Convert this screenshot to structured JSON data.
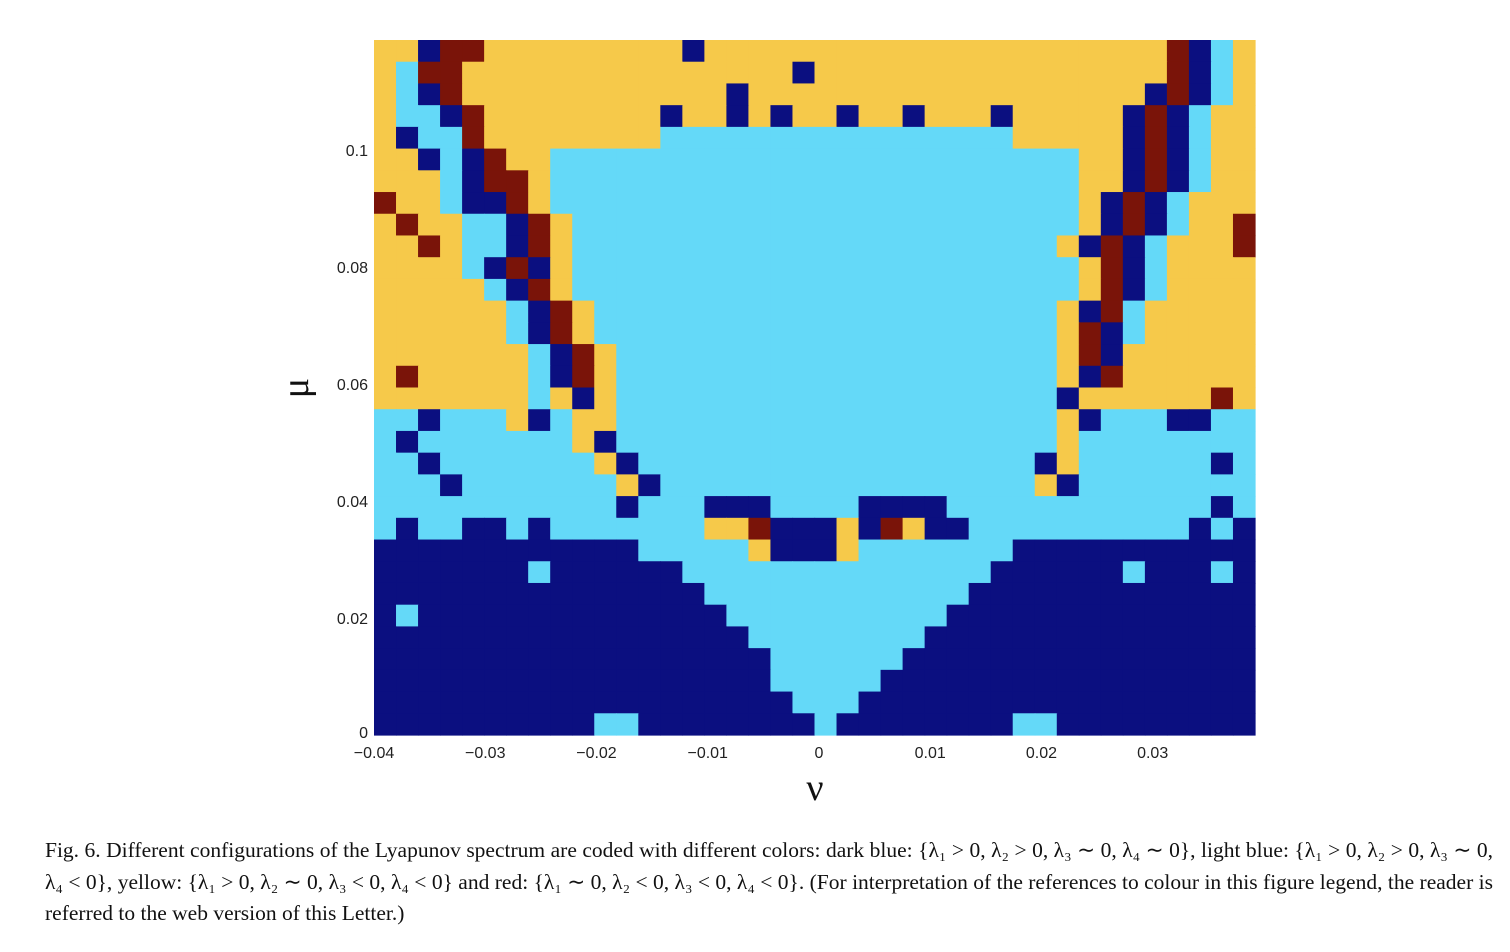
{
  "chart_data": {
    "type": "heatmap",
    "title": "",
    "xlabel": "ν",
    "ylabel": "μ",
    "xlim": [
      -0.04,
      0.0392
    ],
    "ylim": [
      0,
      0.1188
    ],
    "xticks": [
      {
        "value": -0.04,
        "label": "−0.04"
      },
      {
        "value": -0.03,
        "label": "−0.03"
      },
      {
        "value": -0.02,
        "label": "−0.02"
      },
      {
        "value": -0.01,
        "label": "−0.01"
      },
      {
        "value": 0,
        "label": "0"
      },
      {
        "value": 0.01,
        "label": "0.01"
      },
      {
        "value": 0.02,
        "label": "0.02"
      },
      {
        "value": 0.03,
        "label": "0.03"
      }
    ],
    "yticks": [
      {
        "value": 0,
        "label": "0"
      },
      {
        "value": 0.02,
        "label": "0.02"
      },
      {
        "value": 0.04,
        "label": "0.04"
      },
      {
        "value": 0.06,
        "label": "0.06"
      },
      {
        "value": 0.08,
        "label": "0.08"
      },
      {
        "value": 0.1,
        "label": "0.1"
      }
    ],
    "grid": false,
    "categories": {
      "D": {
        "meaning": "dark blue",
        "color": "#0b0f80"
      },
      "L": {
        "meaning": "light blue",
        "color": "#64d9f8"
      },
      "Y": {
        "meaning": "yellow",
        "color": "#f6c94a"
      },
      "R": {
        "meaning": "red",
        "color": "#7a1409"
      }
    },
    "rows_top_to_bottom": [
      [
        "YYDRRYYYYY",
        "YYYYDYYYYY",
        "YYYYYYYYYY",
        "YYYYYYRDLY"
      ],
      [
        "YLRRYYYYYY",
        "YYYYYYYYYD",
        "YYYYYYYYYY",
        "YYYYYYRDLY"
      ],
      [
        "YLDRYYYYYY",
        "YYYYYYDYYY",
        "YYYYYYYYYY",
        "YYYYYDRDLY"
      ],
      [
        "YLLDRYYYYY",
        "YYYDYYDYDY",
        "YDYYDYYYDY",
        "YYYYDRDLYY"
      ],
      [
        "YDLLRYYYYY",
        "YYYLLLLLLL",
        "LLLLLLLLLY",
        "YYYYDRDLYY"
      ],
      [
        "YYDLDRYYLL",
        "LLLLLLLLLL",
        "LLLLLLLLLL",
        "LLYYDRDLYY"
      ],
      [
        "YYYLDRRYLL",
        "LLLLLLLLLL",
        "LLLLLLLLLL",
        "LLYYDRDLYY"
      ],
      [
        "RYYLDDRYLL",
        "LLLLLLLLLL",
        "LLLLLLLLLL",
        "LLYDRDLYYY"
      ],
      [
        "YRYYLLDRYL",
        "LLLLLLLLLL",
        "LLLLLLLLLL",
        "LLYDRDLYYR"
      ],
      [
        "YYRYLLDRYL",
        "LLLLLLLLLL",
        "LLLLLLLLLL",
        "LYDRDLYYYR"
      ],
      [
        "YYYYLDRDYL",
        "LLLLLLLLLL",
        "LLLLLLLLLL",
        "LLYRDLYYYY"
      ],
      [
        "YYYYYLDRYL",
        "LLLLLLLLLL",
        "LLLLLLLLLL",
        "LLYRDLYYYY"
      ],
      [
        "YYYYYYLDRY",
        "LLLLLLLLLL",
        "LLLLLLLLLL",
        "LYDRLYYYYY"
      ],
      [
        "YYYYYYLDRY",
        "LLLLLLLLLL",
        "LLLLLLLLLL",
        "LYRDLYYYYY"
      ],
      [
        "YYYYYYYLDR",
        "YLLLLLLLLL",
        "LLLLLLLLLL",
        "LYRDYYYYYY"
      ],
      [
        "YRYYYYYLDR",
        "YLLLLLLLLL",
        "LLLLLLLLLL",
        "LYDRYYYYYY"
      ],
      [
        "YYYYYYYLYD",
        "YLLLLLLLLL",
        "LLLLLLLLLL",
        "LDYYYYYYRY"
      ],
      [
        "LLDLLLYDLY",
        "YLLLLLLLLL",
        "LLLLLLLLLL",
        "LYDLLLDDLL"
      ],
      [
        "LDLLLLLLLY",
        "DLLLLLLLLL",
        "LLLLLLLLLL",
        "LYLLLLLLLL"
      ],
      [
        "LLDLLLLLLL",
        "YDLLLLLLLL",
        "LLLLLLLLLL",
        "DYLLLLLLDL"
      ],
      [
        "LLLDLLLLLL",
        "LYDLLLLLLL",
        "LLLLLLLLLL",
        "YDLLLLLLLL"
      ],
      [
        "LLLLLLLLLL",
        "LDLLLDDDLL",
        "LLDDDDLLLL",
        "LLLLLLLLDL"
      ],
      [
        "LDLLDDLDLL",
        "LLLLLYYRDD",
        "DYDRYDDLLL",
        "LLLLLLLDLD"
      ],
      [
        "DDDDDDDDDD",
        "DDLLLLLYDD",
        "DYLLLLLLLD",
        "DDDDDDDDDD"
      ],
      [
        "DDDDDDDLDD",
        "DDDDLLLLLL",
        "LLLLLLLLDD",
        "DDDDLDDDLD"
      ],
      [
        "DDDDDDDDDD",
        "DDDDDLLLLL",
        "LLLLLLLDDD",
        "DDDDDDDDDD"
      ],
      [
        "DLDDDDDDDD",
        "DDDDDDLLLL",
        "LLLLLLDDDD",
        "DDDDDDDDDD"
      ],
      [
        "DDDDDDDDDD",
        "DDDDDDDLLL",
        "LLLLLDDDDD",
        "DDDDDDDDDD"
      ],
      [
        "DDDDDDDDDD",
        "DDDDDDDDLL",
        "LLLLDDDDDD",
        "DDDDDDDDDD"
      ],
      [
        "DDDDDDDDDD",
        "DDDDDDDDLL",
        "LLLDDDDDDD",
        "DDDDDDDDDD"
      ],
      [
        "DDDDDDDDDD",
        "DDDDDDDDDL",
        "LLDDDDDDDD",
        "DDDDDDDDDD"
      ],
      [
        "DDDDDDDDDD",
        "LLDDDDDDDD",
        "LDDDDDDDDL",
        "LDDDDDDDDD"
      ]
    ]
  },
  "caption": {
    "text": "Fig. 6. Different configurations of the Lyapunov spectrum are coded with different colors: dark blue: {λ₁ > 0, λ₂ > 0, λ₃ ∼ 0, λ₄ ∼ 0}, light blue: {λ₁ > 0, λ₂ > 0, λ₃ ∼ 0, λ₄ < 0}, yellow: {λ₁ > 0, λ₂ ∼ 0, λ₃ < 0, λ₄ < 0} and red: {λ₁ ∼ 0, λ₂ < 0, λ₃ < 0, λ₄ < 0}. (For interpretation of the references to colour in this figure legend, the reader is referred to the web version of this Letter.)"
  }
}
